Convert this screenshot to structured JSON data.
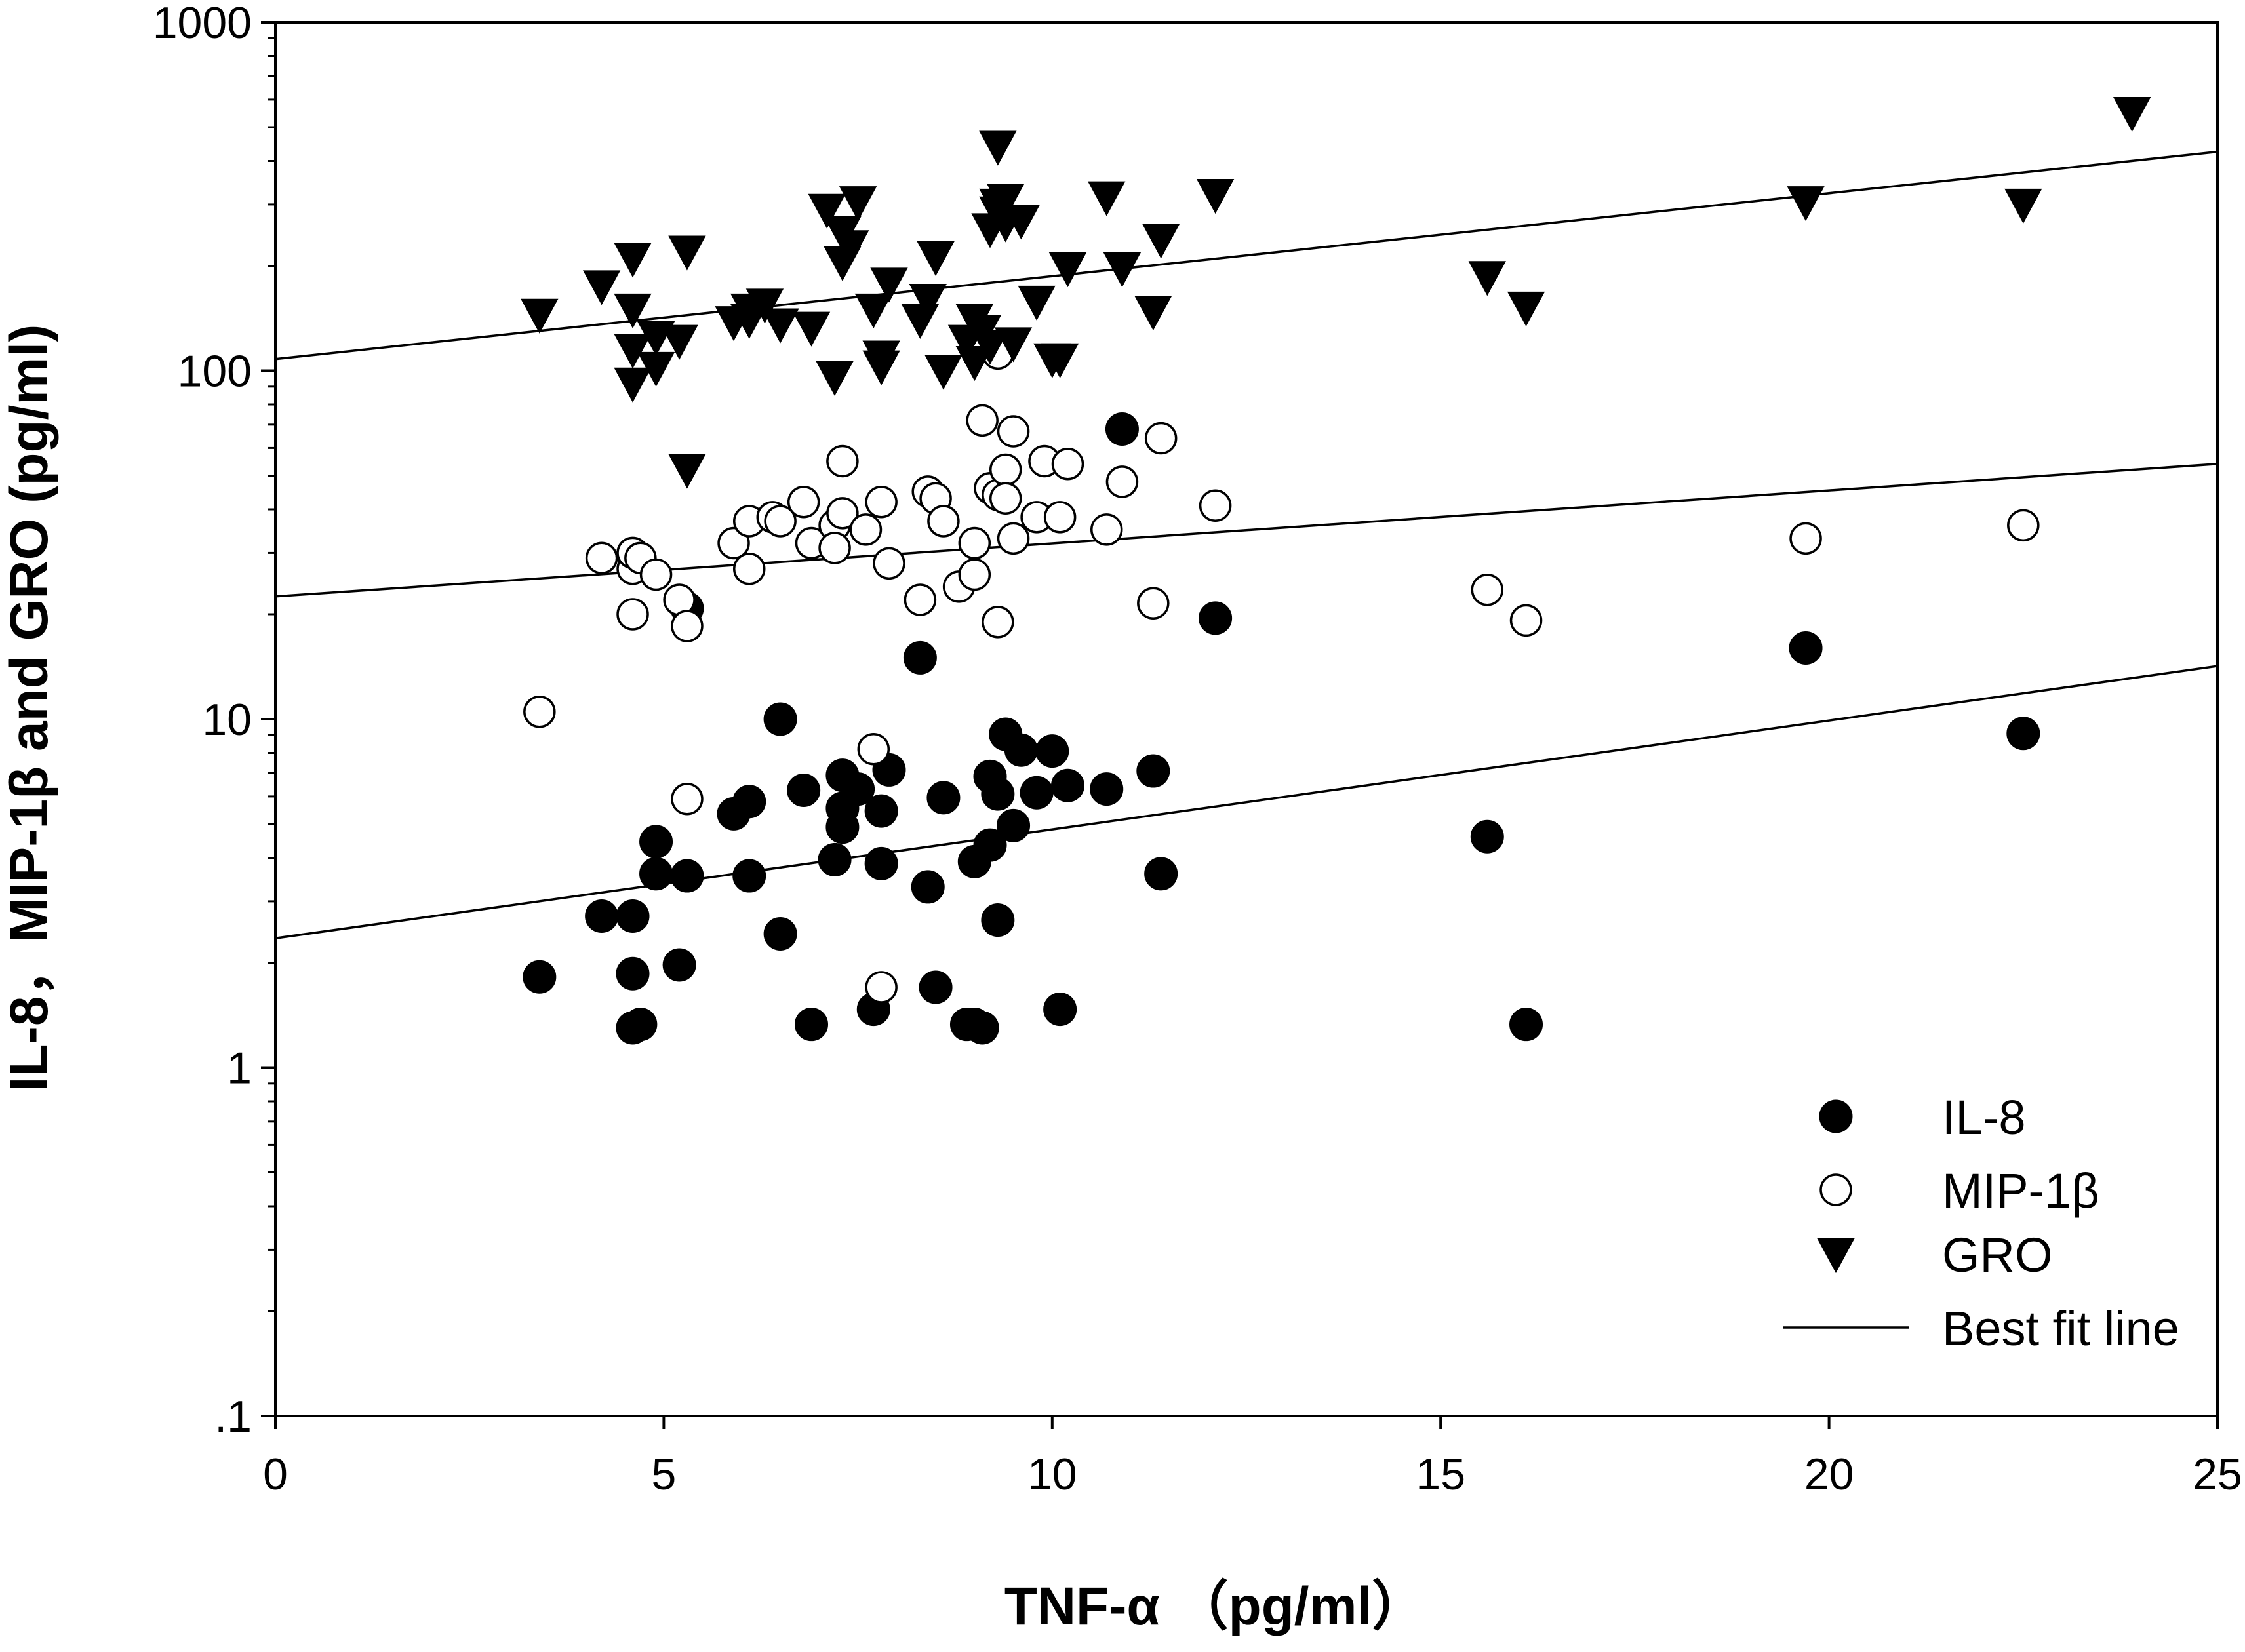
{
  "chart_data": {
    "type": "scatter",
    "xlabel": "TNF-α （pg/ml）",
    "ylabel": "IL-8，MIP-1β and GRO (pg/ml)",
    "xlim": [
      0,
      25
    ],
    "ylim": [
      0.1,
      1000
    ],
    "yscale": "log",
    "x_ticks": [
      0,
      5,
      10,
      15,
      20,
      25
    ],
    "y_ticks": [
      {
        "value": 0.1,
        "label": ".1"
      },
      {
        "value": 1,
        "label": "1"
      },
      {
        "value": 10,
        "label": "10"
      },
      {
        "value": 100,
        "label": "100"
      },
      {
        "value": 1000,
        "label": "1000"
      }
    ],
    "grid": false,
    "legend_position": "bottom-right",
    "series": [
      {
        "name": "IL-8",
        "marker": "filled-circle",
        "fit": [
          [
            0,
            2.35
          ],
          [
            25,
            14.2
          ]
        ],
        "points": [
          [
            3.4,
            1.82
          ],
          [
            4.2,
            2.72
          ],
          [
            4.6,
            2.72
          ],
          [
            4.6,
            1.86
          ],
          [
            4.6,
            1.3
          ],
          [
            4.7,
            1.33
          ],
          [
            4.9,
            4.45
          ],
          [
            4.9,
            3.6
          ],
          [
            5.2,
            1.97
          ],
          [
            5.3,
            3.55
          ],
          [
            5.3,
            20.8
          ],
          [
            5.9,
            5.35
          ],
          [
            6.1,
            5.8
          ],
          [
            6.1,
            3.55
          ],
          [
            6.5,
            2.42
          ],
          [
            6.5,
            10.0
          ],
          [
            6.8,
            6.25
          ],
          [
            6.9,
            1.33
          ],
          [
            7.2,
            3.95
          ],
          [
            7.3,
            4.9
          ],
          [
            7.3,
            5.55
          ],
          [
            7.3,
            6.9
          ],
          [
            7.5,
            6.3
          ],
          [
            7.7,
            1.47
          ],
          [
            7.8,
            3.85
          ],
          [
            7.8,
            5.45
          ],
          [
            7.9,
            7.15
          ],
          [
            8.3,
            15.0
          ],
          [
            8.4,
            3.3
          ],
          [
            8.5,
            1.7
          ],
          [
            8.6,
            5.95
          ],
          [
            8.9,
            1.33
          ],
          [
            9.0,
            1.33
          ],
          [
            9.0,
            3.9
          ],
          [
            9.1,
            1.3
          ],
          [
            9.2,
            4.35
          ],
          [
            9.2,
            6.85
          ],
          [
            9.3,
            2.65
          ],
          [
            9.3,
            6.1
          ],
          [
            9.4,
            9.05
          ],
          [
            9.5,
            4.95
          ],
          [
            9.6,
            8.15
          ],
          [
            9.8,
            6.15
          ],
          [
            10.0,
            8.1
          ],
          [
            10.1,
            1.47
          ],
          [
            10.2,
            6.45
          ],
          [
            10.7,
            6.3
          ],
          [
            10.9,
            68.0
          ],
          [
            11.3,
            7.1
          ],
          [
            11.4,
            3.6
          ],
          [
            12.1,
            19.5
          ],
          [
            15.6,
            4.6
          ],
          [
            16.1,
            1.33
          ],
          [
            19.7,
            16.0
          ],
          [
            22.5,
            9.1
          ]
        ]
      },
      {
        "name": "MIP-1β",
        "marker": "open-circle",
        "fit": [
          [
            0,
            22.5
          ],
          [
            25,
            54.0
          ]
        ],
        "points": [
          [
            3.4,
            10.5
          ],
          [
            4.2,
            29.0
          ],
          [
            4.6,
            27.0
          ],
          [
            4.6,
            30.0
          ],
          [
            4.6,
            20.0
          ],
          [
            4.7,
            29.0
          ],
          [
            4.9,
            26.0
          ],
          [
            5.2,
            22.0
          ],
          [
            5.3,
            18.5
          ],
          [
            5.3,
            5.9
          ],
          [
            5.9,
            32.0
          ],
          [
            6.1,
            37.0
          ],
          [
            6.1,
            27.0
          ],
          [
            6.4,
            38.0
          ],
          [
            6.5,
            37.0
          ],
          [
            6.8,
            42.0
          ],
          [
            6.9,
            32.0
          ],
          [
            7.2,
            36.0
          ],
          [
            7.2,
            31.0
          ],
          [
            7.3,
            55.0
          ],
          [
            7.3,
            39.0
          ],
          [
            7.6,
            35.0
          ],
          [
            7.7,
            8.2
          ],
          [
            7.8,
            42.0
          ],
          [
            7.8,
            1.7
          ],
          [
            7.9,
            28.0
          ],
          [
            8.3,
            22.0
          ],
          [
            8.4,
            45.0
          ],
          [
            8.5,
            43.0
          ],
          [
            8.6,
            37.0
          ],
          [
            8.8,
            24.0
          ],
          [
            9.0,
            26.0
          ],
          [
            9.0,
            32.0
          ],
          [
            9.1,
            72.0
          ],
          [
            9.2,
            46.0
          ],
          [
            9.3,
            44.0
          ],
          [
            9.3,
            19.0
          ],
          [
            9.3,
            112.0
          ],
          [
            9.4,
            52.0
          ],
          [
            9.4,
            43.0
          ],
          [
            9.5,
            67.0
          ],
          [
            9.5,
            33.0
          ],
          [
            9.8,
            38.0
          ],
          [
            9.9,
            55.0
          ],
          [
            10.1,
            38.0
          ],
          [
            10.2,
            54.0
          ],
          [
            10.7,
            35.0
          ],
          [
            10.9,
            48.0
          ],
          [
            11.3,
            21.5
          ],
          [
            11.4,
            64.0
          ],
          [
            12.1,
            41.0
          ],
          [
            15.6,
            23.5
          ],
          [
            16.1,
            19.2
          ],
          [
            19.7,
            33.0
          ],
          [
            22.5,
            36.0
          ]
        ]
      },
      {
        "name": "GRO",
        "marker": "filled-down-triangle",
        "fit": [
          [
            0,
            108.0
          ],
          [
            25,
            425.0
          ]
        ],
        "points": [
          [
            3.4,
            145
          ],
          [
            4.2,
            175
          ],
          [
            4.6,
            210
          ],
          [
            4.6,
            150
          ],
          [
            4.6,
            115
          ],
          [
            4.6,
            92
          ],
          [
            4.9,
            125
          ],
          [
            4.9,
            102
          ],
          [
            5.2,
            122
          ],
          [
            5.3,
            52
          ],
          [
            5.3,
            220
          ],
          [
            5.9,
            138
          ],
          [
            6.1,
            150
          ],
          [
            6.1,
            140
          ],
          [
            6.3,
            155
          ],
          [
            6.5,
            136
          ],
          [
            6.9,
            133
          ],
          [
            7.1,
            290
          ],
          [
            7.2,
            96
          ],
          [
            7.3,
            250
          ],
          [
            7.3,
            205
          ],
          [
            7.4,
            228
          ],
          [
            7.5,
            305
          ],
          [
            7.7,
            150
          ],
          [
            7.8,
            110
          ],
          [
            7.8,
            103
          ],
          [
            7.9,
            178
          ],
          [
            8.3,
            140
          ],
          [
            8.4,
            160
          ],
          [
            8.5,
            212
          ],
          [
            8.6,
            100
          ],
          [
            8.9,
            122
          ],
          [
            9.0,
            140
          ],
          [
            9.0,
            106
          ],
          [
            9.1,
            130
          ],
          [
            9.2,
            118
          ],
          [
            9.2,
            255
          ],
          [
            9.3,
            440
          ],
          [
            9.3,
            300
          ],
          [
            9.3,
            285
          ],
          [
            9.4,
            310
          ],
          [
            9.4,
            265
          ],
          [
            9.5,
            120
          ],
          [
            9.6,
            270
          ],
          [
            9.8,
            158
          ],
          [
            10.0,
            108
          ],
          [
            10.1,
            108
          ],
          [
            10.2,
            197
          ],
          [
            10.7,
            315
          ],
          [
            10.9,
            197
          ],
          [
            11.3,
            148
          ],
          [
            11.4,
            238
          ],
          [
            12.1,
            320
          ],
          [
            15.6,
            186
          ],
          [
            16.1,
            152
          ],
          [
            19.7,
            305
          ],
          [
            22.5,
            300
          ],
          [
            23.9,
            550
          ]
        ]
      },
      {
        "name": "Best fit line",
        "marker": "line"
      }
    ]
  }
}
